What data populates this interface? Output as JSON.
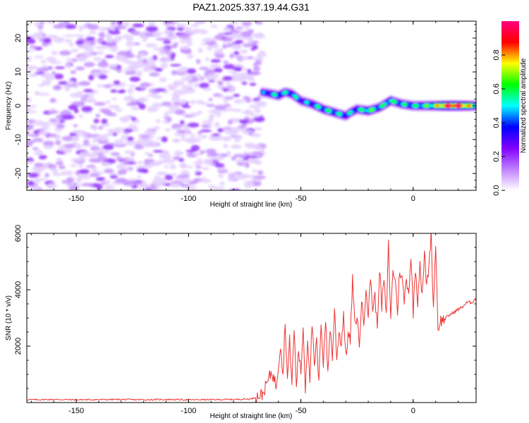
{
  "figure": {
    "title": "PAZ1.2025.337.19.44.G31"
  },
  "chart_data": [
    {
      "type": "heatmap",
      "title": "PAZ1.2025.337.19.44.G31",
      "xlabel": "Height of straight line (km)",
      "ylabel": "Frequency (Hz)",
      "xlim": [
        -172,
        28
      ],
      "ylim": [
        -25,
        25
      ],
      "xticks": [
        -150,
        -100,
        -50,
        0
      ],
      "yticks": [
        -20,
        -10,
        0,
        10,
        20
      ],
      "xtick_labels": [
        "-150",
        "-100",
        "-50",
        "0"
      ],
      "ytick_labels": [
        "-20",
        "-10",
        "0",
        "10",
        "20"
      ],
      "noise_region": {
        "x_range": [
          -172,
          -67
        ],
        "y_range": [
          -25,
          25
        ],
        "description_level": 0.1
      },
      "signal_ridge": {
        "x": [
          -67,
          -63,
          -60,
          -57,
          -54,
          -50,
          -45,
          -40,
          -35,
          -30,
          -28,
          -25,
          -20,
          -15,
          -10,
          -5,
          0,
          5,
          10,
          15,
          20,
          28
        ],
        "y": [
          4,
          3.5,
          3,
          4,
          3.5,
          1.5,
          0.5,
          -1,
          -2,
          -3,
          -2,
          -1,
          -1.5,
          -0.5,
          1.5,
          0.5,
          0,
          0,
          0,
          0,
          0,
          0
        ],
        "amplitude": [
          0.35,
          0.45,
          0.5,
          0.45,
          0.5,
          0.4,
          0.45,
          0.5,
          0.5,
          0.45,
          0.45,
          0.45,
          0.6,
          0.5,
          0.55,
          0.5,
          0.5,
          0.55,
          0.65,
          0.9,
          0.95,
          0.6
        ]
      },
      "colorbar": {
        "label": "Normalized spectral amplitude",
        "range": [
          0.0,
          1.0
        ],
        "ticks": [
          0.0,
          0.2,
          0.4,
          0.6,
          0.8
        ],
        "tick_labels": [
          "0.0",
          "0.2",
          "0.4",
          "0.6",
          "0.8"
        ],
        "colors": [
          "#ffffff",
          "#c080ff",
          "#8000ff",
          "#0000ff",
          "#00ffff",
          "#00ff00",
          "#ffff00",
          "#ff0000",
          "#ff0080"
        ]
      }
    },
    {
      "type": "line",
      "xlabel": "Height of straight line (km)",
      "ylabel": "SNR (10 * v/v)",
      "xlim": [
        -172,
        28
      ],
      "ylim": [
        0,
        6000
      ],
      "xticks": [
        -150,
        -100,
        -50,
        0
      ],
      "yticks": [
        2000,
        4000,
        6000
      ],
      "xtick_labels": [
        "-150",
        "-100",
        "-50",
        "0"
      ],
      "ytick_labels": [
        "2000",
        "4000",
        "6000"
      ],
      "series": [
        {
          "name": "SNR",
          "color": "#ee3333",
          "x": [
            -172,
            -160,
            -150,
            -140,
            -130,
            -120,
            -110,
            -100,
            -90,
            -80,
            -72,
            -67,
            -63,
            -61,
            -59,
            -58,
            -57,
            -56,
            -55,
            -54,
            -53,
            -52,
            -51,
            -50,
            -49,
            -48,
            -47,
            -46,
            -45,
            -44,
            -43,
            -42,
            -41,
            -40,
            -39,
            -38,
            -37,
            -36,
            -35,
            -34,
            -33,
            -32,
            -31,
            -30,
            -29,
            -28,
            -27,
            -26,
            -25,
            -24,
            -23,
            -22,
            -21,
            -20,
            -19,
            -18,
            -17,
            -16,
            -15,
            -14,
            -13,
            -12,
            -11,
            -10,
            -9,
            -8,
            -7,
            -6,
            -5,
            -4,
            -3,
            -2,
            -1,
            0,
            1,
            2,
            3,
            4,
            5,
            6,
            7,
            8,
            9,
            10,
            11,
            12,
            14,
            16,
            18,
            20,
            22,
            24,
            26,
            28
          ],
          "y": [
            100,
            110,
            100,
            105,
            110,
            100,
            110,
            100,
            105,
            110,
            130,
            300,
            1100,
            600,
            2100,
            900,
            2900,
            800,
            2200,
            700,
            2600,
            600,
            1900,
            1000,
            2700,
            500,
            2300,
            900,
            2800,
            1200,
            2200,
            600,
            2900,
            1400,
            3000,
            1000,
            2700,
            1600,
            3300,
            1500,
            2600,
            2000,
            3200,
            1600,
            2400,
            2200,
            4400,
            2700,
            3100,
            2000,
            3600,
            2800,
            4200,
            3000,
            4500,
            3300,
            3800,
            2600,
            4800,
            3400,
            4400,
            3000,
            5600,
            3000,
            4700,
            4400,
            3200,
            4700,
            4400,
            3600,
            4400,
            3900,
            5200,
            3200,
            4800,
            3600,
            5000,
            3700,
            5300,
            4100,
            4900,
            6000,
            3300,
            5700,
            2600,
            2900,
            2950,
            3100,
            3200,
            3300,
            3400,
            3550,
            3550,
            3700
          ]
        }
      ]
    }
  ]
}
